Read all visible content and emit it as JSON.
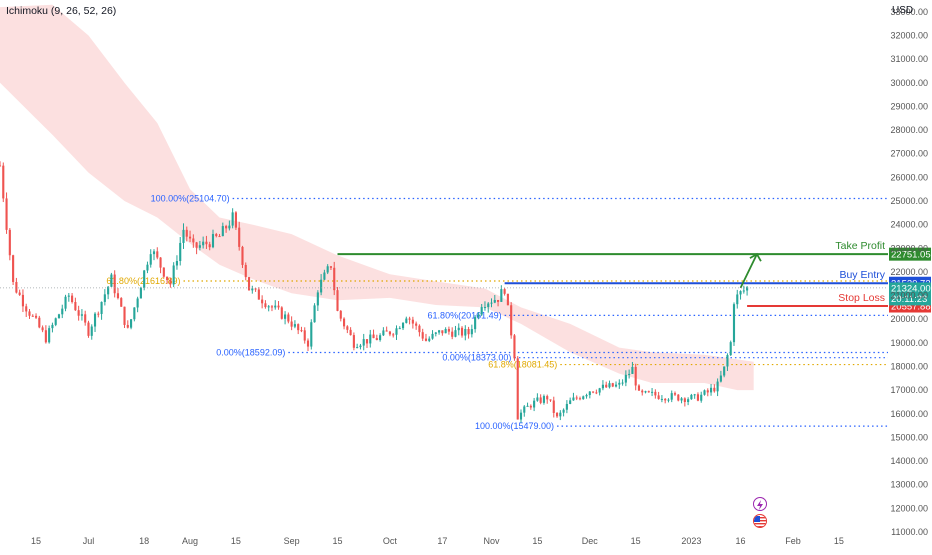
{
  "indicator": "Ichimoku (9, 26, 52, 26)",
  "currency": "USD",
  "colors": {
    "bull": "#26a69a",
    "bear": "#ef5350",
    "cloud": "#fbd6d6",
    "cloud_green": "#d8eedf",
    "fib": "#2962ff",
    "fib_gold": "#e0a800",
    "take_profit": "#2e8b2e",
    "buy_entry": "#1e4fd8",
    "stop_loss": "#e53935"
  },
  "icons": [
    "lightning-icon",
    "us-flag-icon"
  ],
  "chart_data": {
    "type": "candlestick",
    "x_start": "2022-06-04",
    "x_end": "2023-03-02",
    "ylim": [
      11000,
      33500
    ],
    "y_ticks": [
      11000,
      12000,
      13000,
      14000,
      15000,
      16000,
      17000,
      18000,
      19000,
      20000,
      21000,
      22000,
      23000,
      24000,
      25000,
      26000,
      27000,
      28000,
      29000,
      30000,
      31000,
      32000,
      33000
    ],
    "y_tick_labels": [
      "11000.00",
      "12000.00",
      "13000.00",
      "14000.00",
      "15000.00",
      "16000.00",
      "17000.00",
      "18000.00",
      "19000.00",
      "20000.00",
      "21000.00",
      "22000.00",
      "23000.00",
      "24000.00",
      "25000.00",
      "26000.00",
      "27000.00",
      "28000.00",
      "29000.00",
      "30000.00",
      "31000.00",
      "32000.00",
      "33000.00"
    ],
    "x_ticks": [
      {
        "date": "2022-06-15",
        "label": "15"
      },
      {
        "date": "2022-07-01",
        "label": "Jul"
      },
      {
        "date": "2022-07-18",
        "label": "18"
      },
      {
        "date": "2022-08-01",
        "label": "Aug"
      },
      {
        "date": "2022-08-15",
        "label": "15"
      },
      {
        "date": "2022-09-01",
        "label": "Sep"
      },
      {
        "date": "2022-09-15",
        "label": "15"
      },
      {
        "date": "2022-10-01",
        "label": "Oct"
      },
      {
        "date": "2022-10-17",
        "label": "17"
      },
      {
        "date": "2022-11-01",
        "label": "Nov"
      },
      {
        "date": "2022-11-15",
        "label": "15"
      },
      {
        "date": "2022-12-01",
        "label": "Dec"
      },
      {
        "date": "2022-12-15",
        "label": "15"
      },
      {
        "date": "2023-01-01",
        "label": "2023"
      },
      {
        "date": "2023-01-16",
        "label": "16"
      },
      {
        "date": "2023-02-01",
        "label": "Feb"
      },
      {
        "date": "2023-02-15",
        "label": "15"
      }
    ],
    "price_path": [
      [
        "2022-06-04",
        26500
      ],
      [
        "2022-06-08",
        21500
      ],
      [
        "2022-06-12",
        20500
      ],
      [
        "2022-06-18",
        19200
      ],
      [
        "2022-06-25",
        21000
      ],
      [
        "2022-07-01",
        19500
      ],
      [
        "2022-07-08",
        21700
      ],
      [
        "2022-07-13",
        19500
      ],
      [
        "2022-07-20",
        23000
      ],
      [
        "2022-07-26",
        21500
      ],
      [
        "2022-07-30",
        23800
      ],
      [
        "2022-08-02",
        23000
      ],
      [
        "2022-08-06",
        23200
      ],
      [
        "2022-08-10",
        23500
      ],
      [
        "2022-08-14",
        24300
      ],
      [
        "2022-08-19",
        21300
      ],
      [
        "2022-08-26",
        20500
      ],
      [
        "2022-08-31",
        20000
      ],
      [
        "2022-09-06",
        19000
      ],
      [
        "2022-09-09",
        21300
      ],
      [
        "2022-09-13",
        22300
      ],
      [
        "2022-09-15",
        20300
      ],
      [
        "2022-09-20",
        19000
      ],
      [
        "2022-09-27",
        19200
      ],
      [
        "2022-10-03",
        19600
      ],
      [
        "2022-10-06",
        20200
      ],
      [
        "2022-10-12",
        19100
      ],
      [
        "2022-10-17",
        19500
      ],
      [
        "2022-10-25",
        19400
      ],
      [
        "2022-10-29",
        20700
      ],
      [
        "2022-11-03",
        20900
      ],
      [
        "2022-11-05",
        21300
      ],
      [
        "2022-11-08",
        18500
      ],
      [
        "2022-11-09",
        15900
      ],
      [
        "2022-11-13",
        16400
      ],
      [
        "2022-11-18",
        16700
      ],
      [
        "2022-11-21",
        15800
      ],
      [
        "2022-11-25",
        16500
      ],
      [
        "2022-12-01",
        17000
      ],
      [
        "2022-12-05",
        17100
      ],
      [
        "2022-12-10",
        17200
      ],
      [
        "2022-12-14",
        17900
      ],
      [
        "2022-12-16",
        16800
      ],
      [
        "2022-12-20",
        16800
      ],
      [
        "2022-12-28",
        16700
      ],
      [
        "2023-01-02",
        16650
      ],
      [
        "2023-01-06",
        16900
      ],
      [
        "2023-01-09",
        17200
      ],
      [
        "2023-01-11",
        17900
      ],
      [
        "2023-01-13",
        19000
      ],
      [
        "2023-01-14",
        20800
      ],
      [
        "2023-01-16",
        21100
      ],
      [
        "2023-01-18",
        21324
      ]
    ],
    "cloud_upper": [
      [
        "2022-06-04",
        33200
      ],
      [
        "2022-06-20",
        33300
      ],
      [
        "2022-07-01",
        32000
      ],
      [
        "2022-07-12",
        30000
      ],
      [
        "2022-07-22",
        28300
      ],
      [
        "2022-08-01",
        25500
      ],
      [
        "2022-08-10",
        24300
      ],
      [
        "2022-08-20",
        24000
      ],
      [
        "2022-09-01",
        23600
      ],
      [
        "2022-09-15",
        22700
      ],
      [
        "2022-10-01",
        21900
      ],
      [
        "2022-10-15",
        21600
      ],
      [
        "2022-10-30",
        21300
      ],
      [
        "2022-11-10",
        20500
      ],
      [
        "2022-11-25",
        19800
      ],
      [
        "2022-12-10",
        18800
      ],
      [
        "2022-12-20",
        18600
      ],
      [
        "2023-01-05",
        18500
      ],
      [
        "2023-01-15",
        18300
      ],
      [
        "2023-01-20",
        18200
      ]
    ],
    "cloud_lower": [
      [
        "2022-06-04",
        30000
      ],
      [
        "2022-06-20",
        27800
      ],
      [
        "2022-07-01",
        26200
      ],
      [
        "2022-07-12",
        25000
      ],
      [
        "2022-07-22",
        24300
      ],
      [
        "2022-08-01",
        23200
      ],
      [
        "2022-08-10",
        22300
      ],
      [
        "2022-08-20",
        21700
      ],
      [
        "2022-09-01",
        21100
      ],
      [
        "2022-09-15",
        20800
      ],
      [
        "2022-10-01",
        20900
      ],
      [
        "2022-10-15",
        20600
      ],
      [
        "2022-10-30",
        20500
      ],
      [
        "2022-11-10",
        19800
      ],
      [
        "2022-11-25",
        18600
      ],
      [
        "2022-12-10",
        17700
      ],
      [
        "2022-12-20",
        17300
      ],
      [
        "2023-01-05",
        17300
      ],
      [
        "2023-01-15",
        17000
      ],
      [
        "2023-01-20",
        17000
      ]
    ],
    "fib_levels": [
      {
        "label": "100.00%(25104.70)",
        "value": 25104.7,
        "color": "fib",
        "from": "2022-08-14",
        "to": "2023-03-02"
      },
      {
        "label": "61.80%(21616.89)",
        "value": 21616.89,
        "color": "fib_gold",
        "from": "2022-07-30",
        "to": "2023-03-02"
      },
      {
        "label": "0.00%(18592.09)",
        "value": 18592.09,
        "color": "fib",
        "from": "2022-08-31",
        "to": "2023-03-02"
      },
      {
        "label": "61.80%(20161.49)",
        "value": 20161.49,
        "color": "fib",
        "from": "2022-11-05",
        "to": "2023-03-02"
      },
      {
        "label": "0.00%(18373.00)",
        "value": 18373.0,
        "color": "fib",
        "from": "2022-11-08",
        "to": "2023-03-02"
      },
      {
        "label": "61.8%(18081.45)",
        "value": 18081.45,
        "color": "fib_gold",
        "from": "2022-11-22",
        "to": "2023-03-02"
      },
      {
        "label": "100.00%(15479.00)",
        "value": 15479.0,
        "color": "fib",
        "from": "2022-11-21",
        "to": "2023-03-02"
      }
    ],
    "levels": [
      {
        "name": "Take Profit",
        "value": 22751.05,
        "price_label": "22751.05",
        "color": "take_profit",
        "from": "2022-09-15"
      },
      {
        "name": "Buy Entry",
        "value": 21520.73,
        "price_label": "21520.73",
        "color": "buy_entry",
        "from": "2022-11-05"
      },
      {
        "name": "Stop Loss",
        "value": 20557.88,
        "price_label": "20557.88",
        "color": "stop_loss",
        "from": "2023-01-18"
      }
    ],
    "current_price": {
      "value": 21324.0,
      "label": "21324.00",
      "countdown": "20:11:23"
    }
  }
}
